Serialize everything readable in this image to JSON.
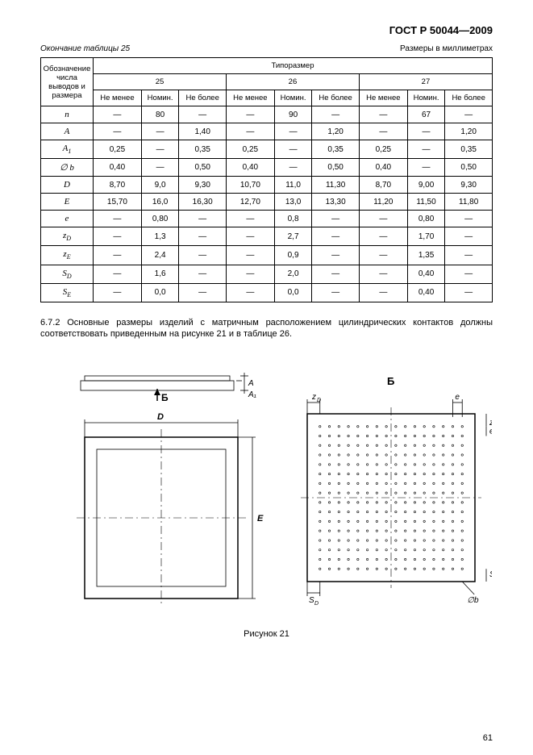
{
  "doc_title": "ГОСТ Р 50044—2009",
  "table_cont": "Окончание таблицы 25",
  "units": "Размеры в миллиметрах",
  "col_header_main": "Обозна­чение числа выводов и размера",
  "col_header_group": "Типоразмер",
  "groups": [
    "25",
    "26",
    "27"
  ],
  "subcols": [
    "Не менее",
    "Номин.",
    "Не более"
  ],
  "rows": [
    {
      "h": "n",
      "v": [
        "—",
        "80",
        "—",
        "—",
        "90",
        "—",
        "—",
        "67",
        "—"
      ]
    },
    {
      "h": "A",
      "v": [
        "—",
        "—",
        "1,40",
        "—",
        "—",
        "1,20",
        "—",
        "—",
        "1,20"
      ]
    },
    {
      "h": "A1",
      "sub": "1",
      "base": "A",
      "v": [
        "0,25",
        "—",
        "0,35",
        "0,25",
        "—",
        "0,35",
        "0,25",
        "—",
        "0,35"
      ]
    },
    {
      "h": "∅ b",
      "v": [
        "0,40",
        "—",
        "0,50",
        "0,40",
        "—",
        "0,50",
        "0,40",
        "—",
        "0,50"
      ]
    },
    {
      "h": "D",
      "v": [
        "8,70",
        "9,0",
        "9,30",
        "10,70",
        "11,0",
        "11,30",
        "8,70",
        "9,00",
        "9,30"
      ]
    },
    {
      "h": "E",
      "v": [
        "15,70",
        "16,0",
        "16,30",
        "12,70",
        "13,0",
        "13,30",
        "11,20",
        "11,50",
        "11,80"
      ]
    },
    {
      "h": "e",
      "v": [
        "—",
        "0,80",
        "—",
        "—",
        "0,8",
        "—",
        "—",
        "0,80",
        "—"
      ]
    },
    {
      "h": "zD",
      "sub": "D",
      "base": "z",
      "v": [
        "—",
        "1,3",
        "—",
        "—",
        "2,7",
        "—",
        "—",
        "1,70",
        "—"
      ]
    },
    {
      "h": "zE",
      "sub": "E",
      "base": "z",
      "v": [
        "—",
        "2,4",
        "—",
        "—",
        "0,9",
        "—",
        "—",
        "1,35",
        "—"
      ]
    },
    {
      "h": "SD",
      "sub": "D",
      "base": "S",
      "v": [
        "—",
        "1,6",
        "—",
        "—",
        "2,0",
        "—",
        "—",
        "0,40",
        "—"
      ]
    },
    {
      "h": "SE",
      "sub": "E",
      "base": "S",
      "v": [
        "—",
        "0,0",
        "—",
        "—",
        "0,0",
        "—",
        "—",
        "0,40",
        "—"
      ]
    }
  ],
  "para": "6.7.2 Основные размеры изделий с матричным расположением цилиндрических контактов должны соответствовать приведенным на рисунке 21 и в таблице 26.",
  "fig_caption": "Рисунок 21",
  "page_num": "61",
  "fig_labels": {
    "B_arrow": "Б",
    "B_title": "Б",
    "D": "D",
    "E": "E",
    "A": "A",
    "A1": "A₁",
    "zD": "zD",
    "zE": "zE",
    "e": "e",
    "SD": "SD",
    "SE": "SE",
    "Ob": "∅b"
  },
  "style": {
    "page_bg": "#ffffff",
    "text": "#000000",
    "border": "#000000",
    "font_body": 11,
    "font_table": 10,
    "font_small": 9
  },
  "diagram": {
    "grid_n": 16,
    "dot_r": 1.2,
    "stroke": "#000000"
  }
}
